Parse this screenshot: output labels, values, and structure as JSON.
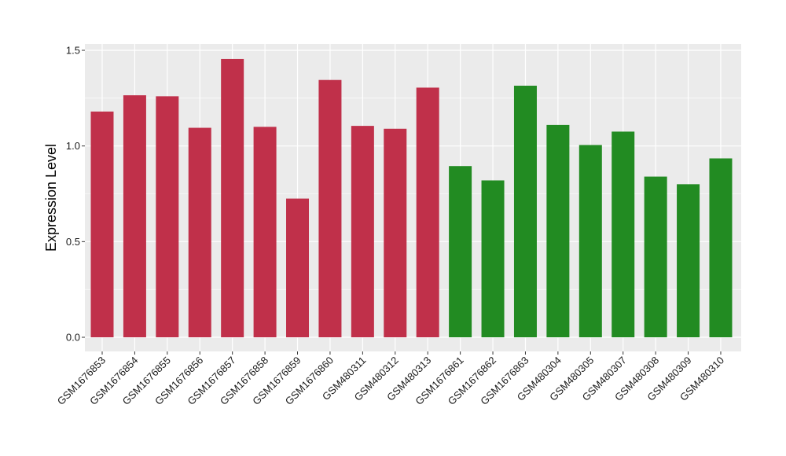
{
  "chart_data": {
    "type": "bar",
    "title": "",
    "xlabel": "",
    "ylabel": "Expression Level",
    "ylim": [
      0,
      1.55
    ],
    "yticks": [
      0.0,
      0.5,
      1.0,
      1.5
    ],
    "ytick_labels": [
      "0.0",
      "0.5",
      "1.0",
      "1.5"
    ],
    "grid": true,
    "legend": "none",
    "categories": [
      "GSM1676853",
      "GSM1676854",
      "GSM1676855",
      "GSM1676856",
      "GSM1676857",
      "GSM1676858",
      "GSM1676859",
      "GSM1676860",
      "GSM480311",
      "GSM480312",
      "GSM480313",
      "GSM1676861",
      "GSM1676862",
      "GSM1676863",
      "GSM480304",
      "GSM480305",
      "GSM480307",
      "GSM480308",
      "GSM480309",
      "GSM480310"
    ],
    "values": [
      1.18,
      1.265,
      1.26,
      1.095,
      1.455,
      1.1,
      0.725,
      1.345,
      1.105,
      1.09,
      1.305,
      0.895,
      0.82,
      1.315,
      1.11,
      1.005,
      1.075,
      0.84,
      0.8,
      0.935
    ],
    "bar_colors": [
      "#C0304A",
      "#C0304A",
      "#C0304A",
      "#C0304A",
      "#C0304A",
      "#C0304A",
      "#C0304A",
      "#C0304A",
      "#C0304A",
      "#C0304A",
      "#C0304A",
      "#228B22",
      "#228B22",
      "#228B22",
      "#228B22",
      "#228B22",
      "#228B22",
      "#228B22",
      "#228B22",
      "#228B22"
    ],
    "panel_background": "#EBEBEB",
    "grid_color": "#FFFFFF"
  }
}
